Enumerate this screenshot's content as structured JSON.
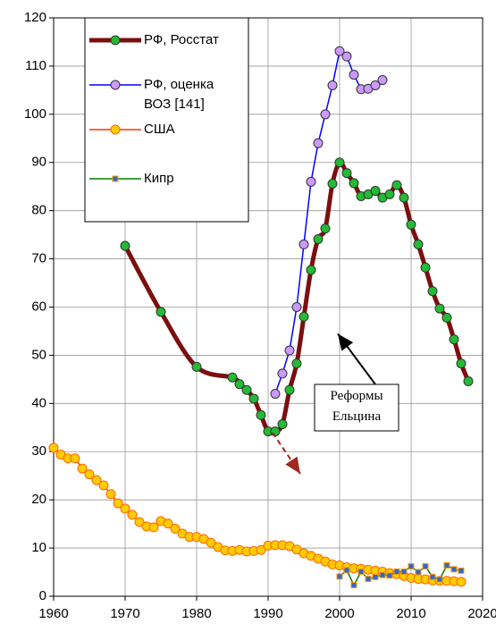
{
  "chart_data": {
    "type": "line",
    "xlim": [
      1960,
      2020
    ],
    "xticks": [
      1960,
      1970,
      1980,
      1990,
      2000,
      2010,
      2020
    ],
    "ylim": [
      0,
      120
    ],
    "yticks": [
      0,
      10,
      20,
      30,
      40,
      50,
      60,
      70,
      80,
      90,
      100,
      110,
      120
    ],
    "grid": true,
    "legend": "upper left",
    "series": [
      {
        "name": "РФ, Росстат",
        "color": "#7b0f0f",
        "marker_color": "#22bb33",
        "smooth": true,
        "x": [
          1970,
          1975,
          1980,
          1985,
          1986,
          1987,
          1988,
          1989,
          1990,
          1991,
          1992,
          1993,
          1994,
          1995,
          1996,
          1997,
          1998,
          1999,
          2000,
          2001,
          2002,
          2003,
          2004,
          2005,
          2006,
          2007,
          2008,
          2009,
          2010,
          2011,
          2012,
          2013,
          2014,
          2015,
          2016,
          2017,
          2018
        ],
        "values": [
          72.7,
          59,
          47.6,
          45.4,
          44,
          42.8,
          41,
          37.6,
          34.2,
          34.2,
          35.7,
          42.8,
          48.3,
          58,
          67.7,
          74.1,
          76.3,
          85.6,
          90,
          87.8,
          85.7,
          83,
          83.4,
          84.1,
          82.7,
          83.4,
          85.3,
          82.7,
          77.1,
          73,
          68.2,
          63.3,
          59.7,
          57.8,
          53.3,
          48.3,
          44.6
        ]
      },
      {
        "name": "РФ, оценка ВОЗ [141]",
        "color": "#0000ff",
        "marker_color": "#cc99ff",
        "x": [
          1991,
          1992,
          1993,
          1994,
          1995,
          1996,
          1997,
          1998,
          1999,
          2000,
          2001,
          2002,
          2003,
          2004,
          2005,
          2006
        ],
        "values": [
          42,
          46.2,
          51,
          60,
          73,
          86,
          94,
          100,
          106,
          113.1,
          112,
          108.2,
          105.2,
          105.3,
          106,
          107.1
        ]
      },
      {
        "name": "США",
        "color": "#ff3300",
        "marker_color": "#ffcc00",
        "x": [
          1960,
          1961,
          1962,
          1963,
          1964,
          1965,
          1966,
          1967,
          1968,
          1969,
          1970,
          1971,
          1972,
          1973,
          1974,
          1975,
          1976,
          1977,
          1978,
          1979,
          1980,
          1981,
          1982,
          1983,
          1984,
          1985,
          1986,
          1987,
          1988,
          1989,
          1990,
          1991,
          1992,
          1993,
          1994,
          1995,
          1996,
          1997,
          1998,
          1999,
          2000,
          2001,
          2002,
          2003,
          2004,
          2005,
          2006,
          2007,
          2008,
          2009,
          2010,
          2011,
          2012,
          2013,
          2014,
          2015,
          2016,
          2017
        ],
        "values": [
          30.8,
          29.4,
          28.6,
          28.6,
          26.5,
          25.3,
          24.1,
          23,
          21.2,
          19.3,
          18.2,
          16.9,
          15.4,
          14.5,
          14.3,
          15.6,
          15.1,
          14,
          13,
          12.3,
          12.3,
          11.9,
          11.1,
          10.2,
          9.5,
          9.4,
          9.6,
          9.3,
          9.4,
          9.6,
          10.5,
          10.6,
          10.6,
          10.4,
          9.7,
          8.9,
          8.4,
          7.8,
          7.2,
          6.6,
          6.4,
          6,
          5.8,
          5.7,
          5.5,
          5.3,
          5.1,
          4.8,
          4.6,
          4.2,
          3.8,
          3.6,
          3.5,
          3.3,
          3.2,
          3.2,
          3.1,
          3.0
        ]
      },
      {
        "name": "Кипр",
        "color": "#008000",
        "marker_color": "#3366cc",
        "marker": "square",
        "x": [
          2000,
          2001,
          2002,
          2003,
          2004,
          2005,
          2006,
          2007,
          2008,
          2009,
          2010,
          2011,
          2012,
          2013,
          2014,
          2015,
          2016,
          2017
        ],
        "values": [
          4.1,
          5.4,
          2.3,
          5.1,
          3.6,
          4.0,
          4.4,
          4.3,
          5.1,
          5.1,
          6.2,
          5.0,
          6.2,
          4.0,
          3.5,
          6.4,
          5.6,
          5.3
        ]
      }
    ],
    "annotations": [
      {
        "text": "Реформы Ельцина",
        "x": 2000,
        "y": 55
      }
    ]
  }
}
